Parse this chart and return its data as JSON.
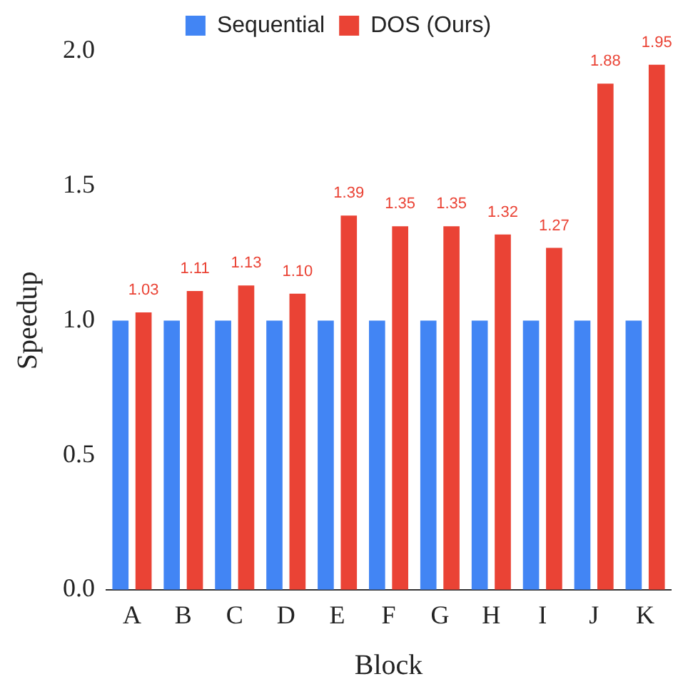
{
  "chart_data": {
    "type": "bar",
    "xlabel": "Block",
    "ylabel": "Speedup",
    "categories": [
      "A",
      "B",
      "C",
      "D",
      "E",
      "F",
      "G",
      "H",
      "I",
      "J",
      "K"
    ],
    "series": [
      {
        "name": "Sequential",
        "color": "#4285f4",
        "values": [
          1,
          1,
          1,
          1,
          1,
          1,
          1,
          1,
          1,
          1,
          1
        ]
      },
      {
        "name": "DOS (Ours)",
        "color": "#ea4335",
        "values": [
          1.03,
          1.11,
          1.13,
          1.1,
          1.39,
          1.35,
          1.35,
          1.32,
          1.27,
          1.88,
          1.95
        ],
        "value_labels": [
          "1.03",
          "1.11",
          "1.13",
          "1.10",
          "1.39",
          "1.35",
          "1.35",
          "1.32",
          "1.27",
          "1.88",
          "1.95"
        ]
      }
    ],
    "ylim": [
      0,
      2
    ],
    "yticks": [
      {
        "value": 0,
        "label": "0.0"
      },
      {
        "value": 0.5,
        "label": "0.5"
      },
      {
        "value": 1,
        "label": "1.0"
      },
      {
        "value": 1.5,
        "label": "1.5"
      },
      {
        "value": 2,
        "label": "2.0"
      }
    ],
    "grid": false,
    "legend": "top"
  }
}
